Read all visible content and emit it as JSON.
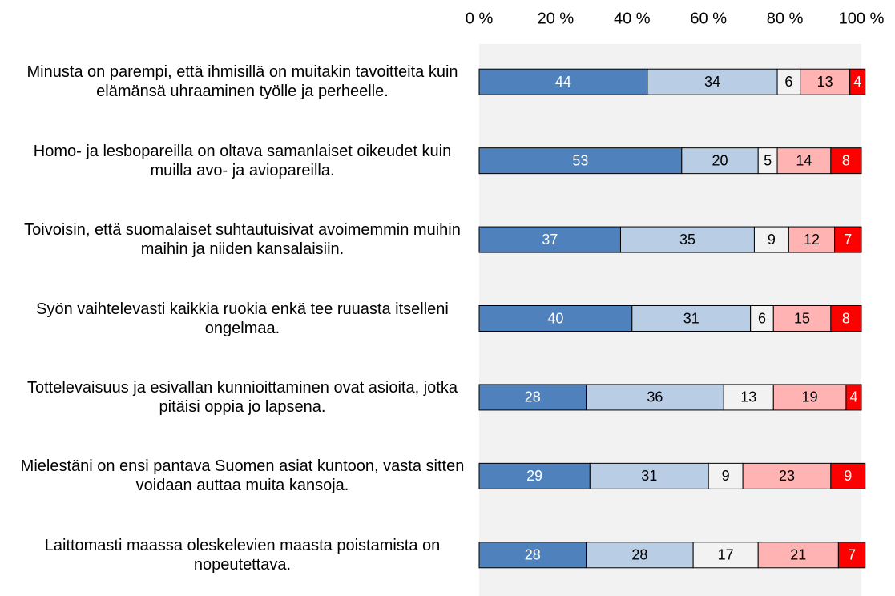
{
  "chart_data": {
    "type": "stacked_bar_horizontal",
    "categories": [
      "Minusta on parempi, että ihmisillä on muitakin tavoitteita kuin elämänsä uhraaminen työlle ja perheelle.",
      "Homo- ja lesbopareilla on oltava samanlaiset oikeudet kuin muilla avo- ja aviopareilla.",
      "Toivoisin, että suomalaiset suhtautuisivat avoimemmin muihin maihin ja niiden kansalaisiin.",
      "Syön vaihtelevasti kaikkia ruokia enkä tee ruuasta itselleni ongelmaa.",
      "Tottelevaisuus ja esivallan kunnioittaminen ovat asioita, jotka pitäisi oppia jo lapsena.",
      "Mielestäni on ensi pantava Suomen asiat kuntoon, vasta sitten voidaan auttaa muita kansoja.",
      "Laittomasti maassa oleskelevien maasta poistamista on nopeutettava."
    ],
    "series": [
      {
        "color": "#4f81bd",
        "label_color": "#ffffff",
        "values": [
          44,
          53,
          37,
          40,
          28,
          29,
          28
        ]
      },
      {
        "color": "#b9cde5",
        "label_color": "#000000",
        "values": [
          34,
          20,
          35,
          31,
          36,
          31,
          28
        ]
      },
      {
        "color": "#f2f2f2",
        "label_color": "#000000",
        "values": [
          6,
          5,
          9,
          6,
          13,
          9,
          17
        ]
      },
      {
        "color": "#ffb3b3",
        "label_color": "#000000",
        "values": [
          13,
          14,
          12,
          15,
          19,
          23,
          21
        ]
      },
      {
        "color": "#ff0000",
        "label_color": "#ffffff",
        "values": [
          4,
          8,
          7,
          8,
          4,
          9,
          7
        ]
      }
    ],
    "xlim": [
      0,
      100
    ],
    "xticks": [
      {
        "value": 0,
        "label": "0 %"
      },
      {
        "value": 20,
        "label": "20 %"
      },
      {
        "value": 40,
        "label": "40 %"
      },
      {
        "value": 60,
        "label": "60 %"
      },
      {
        "value": 80,
        "label": "80 %"
      },
      {
        "value": 100,
        "label": "100 %"
      }
    ]
  }
}
